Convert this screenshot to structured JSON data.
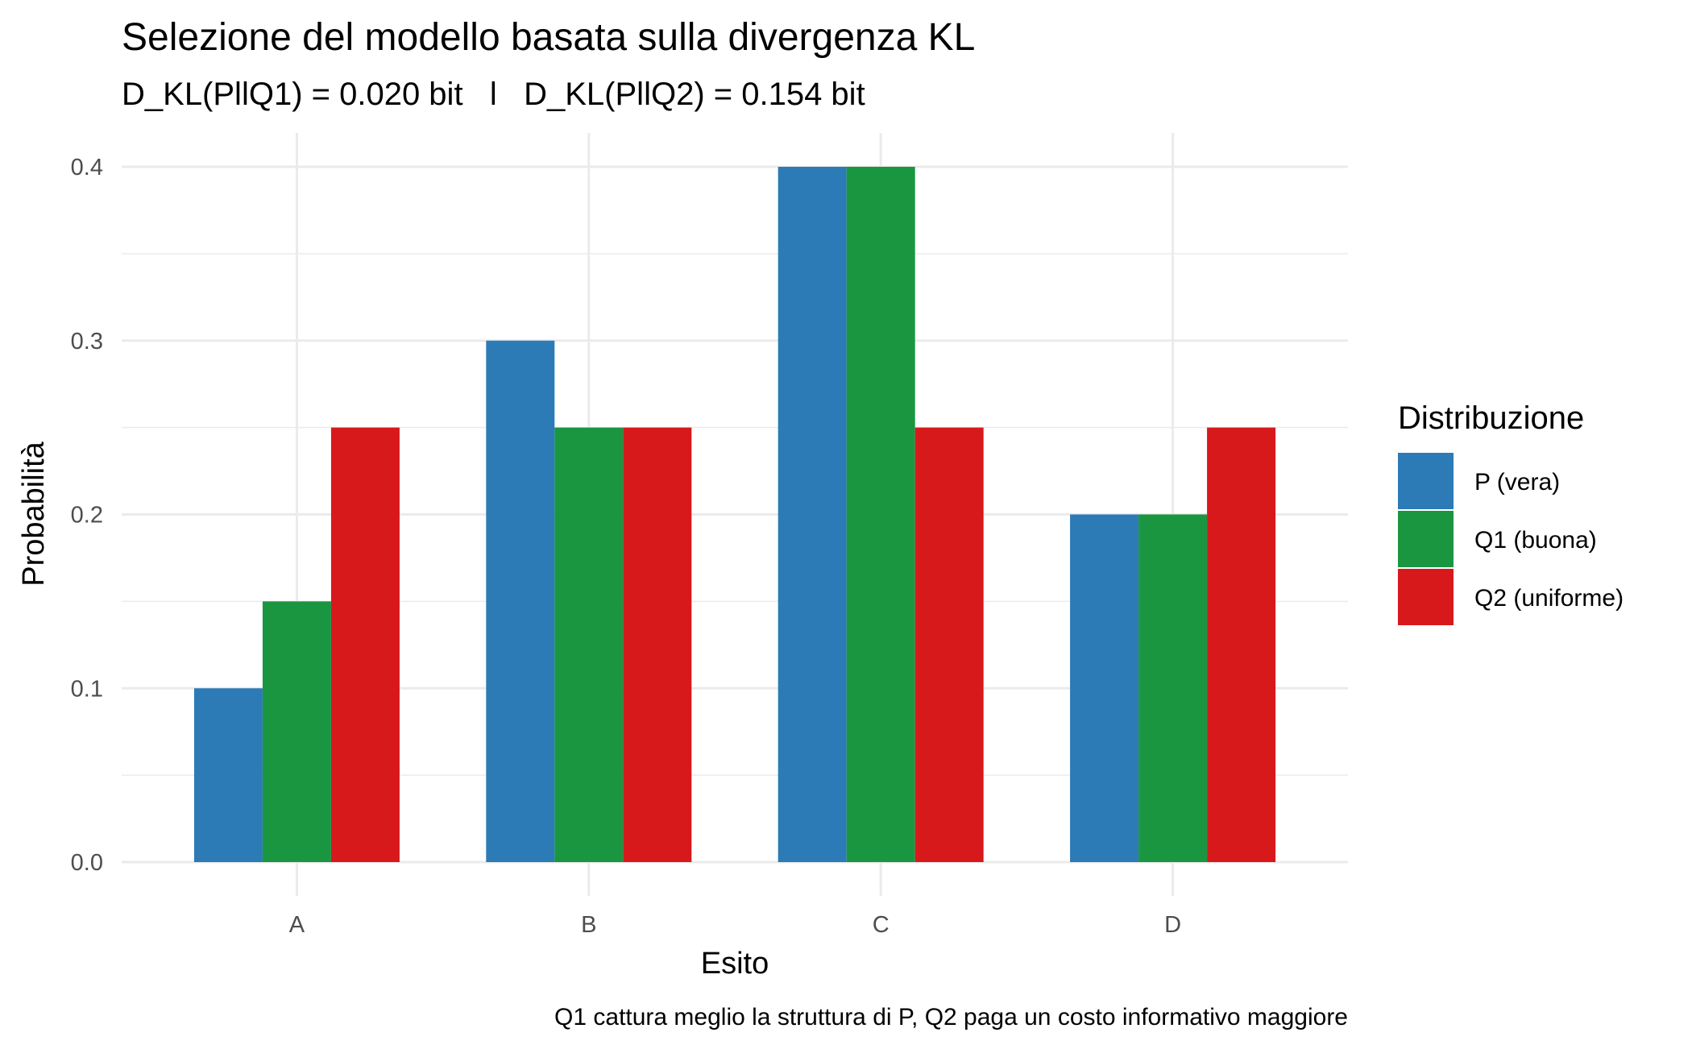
{
  "chart_data": {
    "type": "bar",
    "title": "Selezione del modello basata sulla divergenza KL",
    "subtitle": "D_KL(PllQ1) = 0.020 bit   l   D_KL(PllQ2) = 0.154 bit",
    "caption": "Q1 cattura meglio la struttura di P, Q2 paga un costo informativo maggiore",
    "xlabel": "Esito",
    "ylabel": "Probabilità",
    "categories": [
      "A",
      "B",
      "C",
      "D"
    ],
    "ylim": [
      0,
      0.4
    ],
    "yticks": [
      "0.0",
      "0.1",
      "0.2",
      "0.3",
      "0.4"
    ],
    "ytick_values": [
      0,
      0.1,
      0.2,
      0.3,
      0.4
    ],
    "grid": true,
    "legend": {
      "title": "Distribuzione",
      "placement": "right"
    },
    "series": [
      {
        "name": "P (vera)",
        "color": "#2C7BB6",
        "values": [
          0.1,
          0.3,
          0.4,
          0.2
        ]
      },
      {
        "name": "Q1 (buona)",
        "color": "#1A9641",
        "values": [
          0.15,
          0.25,
          0.4,
          0.2
        ]
      },
      {
        "name": "Q2 (uniforme)",
        "color": "#D7191C",
        "values": [
          0.25,
          0.25,
          0.25,
          0.25
        ]
      }
    ]
  }
}
